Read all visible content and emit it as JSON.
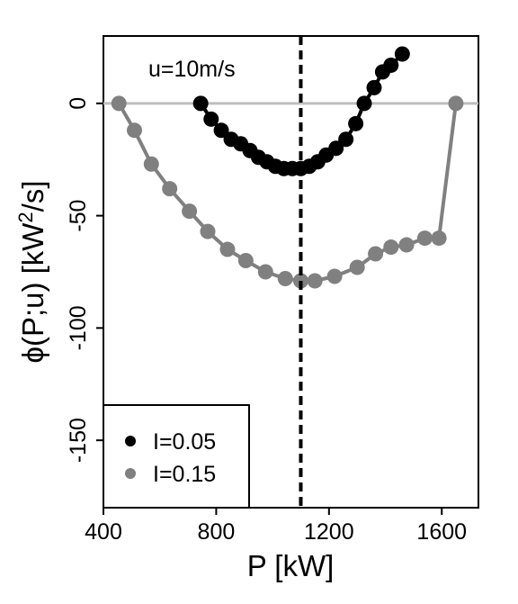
{
  "chart_data": {
    "type": "line",
    "annotation": "u=10m/s",
    "xlabel": "P [kW]",
    "ylabel_pre": "ϕ(P;u) [kW",
    "ylabel_sup": "2",
    "ylabel_post": "/s]",
    "xlim": [
      400,
      1730
    ],
    "ylim": [
      -180,
      30
    ],
    "xticks": [
      400,
      800,
      1200,
      1600
    ],
    "xtick_labels": [
      "400",
      "800",
      "1200",
      "1600"
    ],
    "yticks": [
      0,
      -50,
      -100,
      -150
    ],
    "ytick_labels": [
      "0",
      "-50",
      "-100",
      "-150"
    ],
    "reference_line_y": 0,
    "vertical_line_x": 1100,
    "legend_position": "bottom-left",
    "series": [
      {
        "name": "I=0.05",
        "color": "#000000",
        "x": [
          745,
          782,
          818,
          853,
          887,
          920,
          950,
          980,
          1010,
          1040,
          1070,
          1100,
          1130,
          1160,
          1190,
          1225,
          1260,
          1295,
          1325,
          1360,
          1390,
          1420,
          1460
        ],
        "y": [
          0,
          -7,
          -12,
          -16,
          -18,
          -21,
          -24,
          -26,
          -28,
          -29,
          -29,
          -29,
          -28,
          -26,
          -23,
          -20,
          -16,
          -9,
          0,
          7,
          14,
          17,
          22
        ]
      },
      {
        "name": "I=0.15",
        "color": "#808080",
        "x": [
          455,
          510,
          570,
          635,
          705,
          770,
          840,
          905,
          975,
          1045,
          1100,
          1150,
          1220,
          1300,
          1365,
          1420,
          1475,
          1540,
          1590,
          1650
        ],
        "y": [
          0,
          -12,
          -27,
          -38,
          -48,
          -57,
          -65,
          -70,
          -75,
          -78,
          -79,
          -79,
          -77,
          -73,
          -67,
          -64,
          -63,
          -60,
          -60,
          0
        ]
      }
    ]
  }
}
